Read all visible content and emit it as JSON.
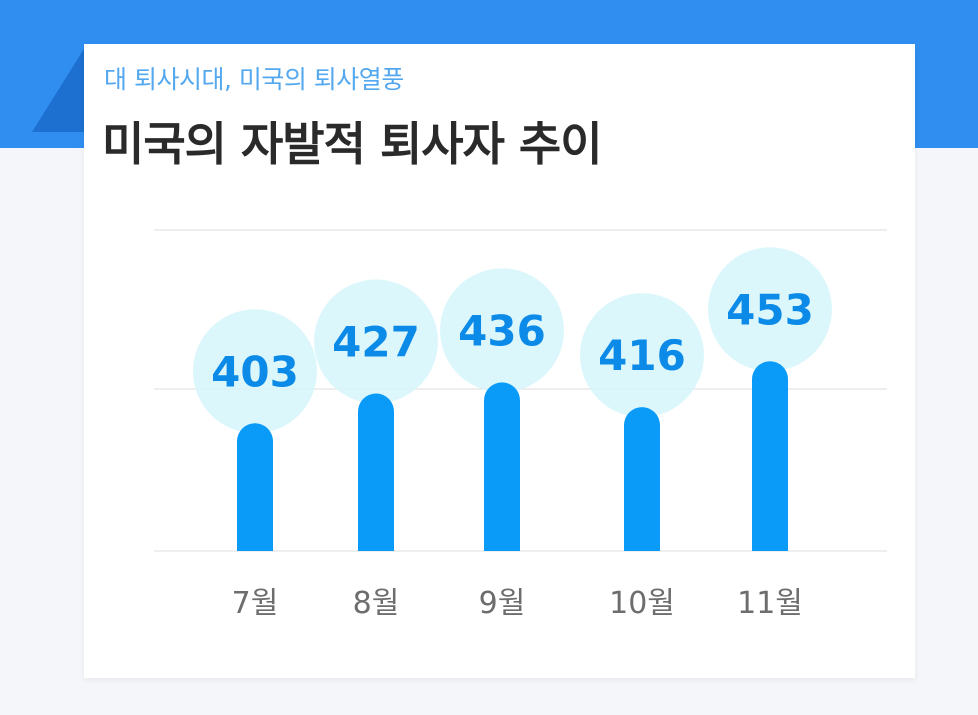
{
  "header": {
    "subtitle": "대 퇴사시대, 미국의 퇴사열풍",
    "title": "미국의 자발적 퇴사자 추이"
  },
  "colors": {
    "band": "#2f8ef0",
    "bar": "#0a9af7",
    "bubble": "#d6f6fc",
    "label": "#0b8ae8",
    "subtitle": "#53a8ef"
  },
  "chart_data": {
    "type": "bar",
    "categories": [
      "7월",
      "8월",
      "9월",
      "10월",
      "11월"
    ],
    "values": [
      403,
      427,
      436,
      416,
      453
    ],
    "title": "미국의 자발적 퇴사자 추이",
    "xlabel": "",
    "ylabel": "",
    "ylim": [
      300,
      500
    ],
    "grid": true,
    "legend": "none"
  }
}
